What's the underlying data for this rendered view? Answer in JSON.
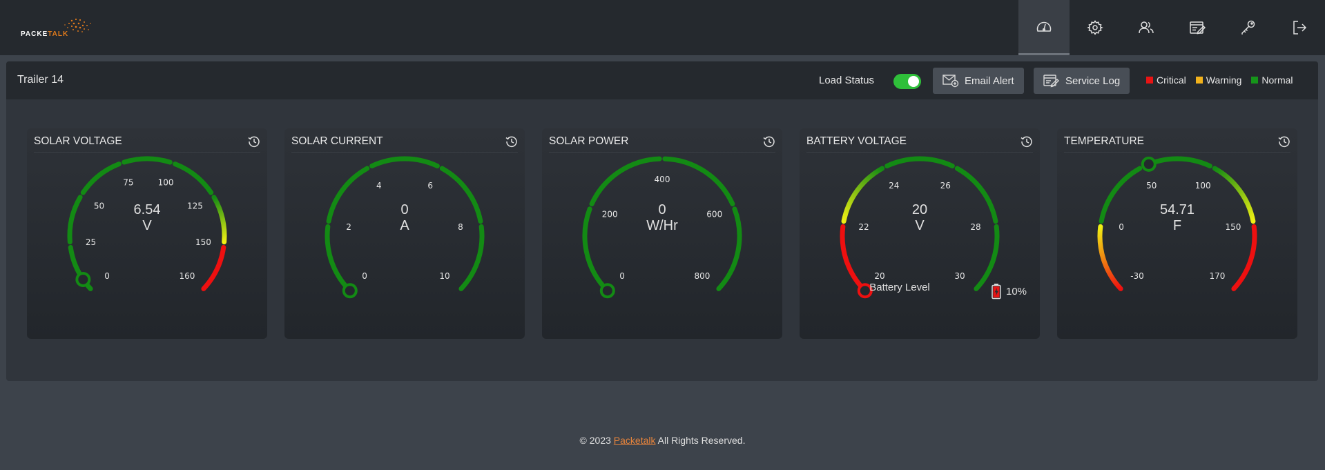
{
  "brand": {
    "logo_part1": "PACKE",
    "logo_part2": "TALK",
    "logo_color": "#e07a1c"
  },
  "nav": [
    {
      "name": "nav-dashboard",
      "icon": "dashboard-gauge-icon",
      "active": true
    },
    {
      "name": "nav-settings",
      "icon": "gear-icon",
      "active": false
    },
    {
      "name": "nav-users",
      "icon": "users-icon",
      "active": false
    },
    {
      "name": "nav-service-log",
      "icon": "notepad-pen-icon",
      "active": false
    },
    {
      "name": "nav-keys",
      "icon": "key-icon",
      "active": false
    },
    {
      "name": "nav-logout",
      "icon": "logout-icon",
      "active": false
    }
  ],
  "header": {
    "trailer_name": "Trailer 14",
    "load_status_label": "Load Status",
    "load_status_on": true,
    "email_alert_label": "Email Alert",
    "service_log_label": "Service Log",
    "legend": [
      {
        "label": "Critical",
        "color": "#e81414"
      },
      {
        "label": "Warning",
        "color": "#f2b21c"
      },
      {
        "label": "Normal",
        "color": "#16951a"
      }
    ]
  },
  "colors": {
    "normal": "#138a14",
    "warning_yellow": "#f0f014",
    "critical": "#ee1010"
  },
  "gauges": [
    {
      "id": "solar-voltage",
      "title": "SOLAR VOLTAGE",
      "value": "6.54",
      "unit": "V",
      "ticks": [
        "0",
        "25",
        "50",
        "75",
        "100",
        "125",
        "150",
        "160"
      ],
      "zones": [
        [
          "normal",
          "normal"
        ],
        [
          "normal",
          "normal"
        ],
        [
          "normal",
          "normal"
        ],
        [
          "normal",
          "normal"
        ],
        [
          "normal",
          "normal"
        ],
        [
          "normal",
          "warning_yellow"
        ],
        [
          "critical",
          "critical"
        ]
      ],
      "needle_fraction": 0.04
    },
    {
      "id": "solar-current",
      "title": "SOLAR CURRENT",
      "value": "0",
      "unit": "A",
      "ticks": [
        "0",
        "2",
        "4",
        "6",
        "8",
        "10"
      ],
      "zones": [
        [
          "normal",
          "normal"
        ],
        [
          "normal",
          "normal"
        ],
        [
          "normal",
          "normal"
        ],
        [
          "normal",
          "normal"
        ],
        [
          "normal",
          "normal"
        ]
      ],
      "needle_fraction": 0
    },
    {
      "id": "solar-power",
      "title": "SOLAR POWER",
      "value": "0",
      "unit": "W/Hr",
      "ticks": [
        "0",
        "200",
        "400",
        "600",
        "800"
      ],
      "zones": [
        [
          "normal",
          "normal"
        ],
        [
          "normal",
          "normal"
        ],
        [
          "normal",
          "normal"
        ],
        [
          "normal",
          "normal"
        ]
      ],
      "needle_fraction": 0
    },
    {
      "id": "battery-voltage",
      "title": "BATTERY VOLTAGE",
      "value": "20",
      "unit": "V",
      "ticks": [
        "20",
        "22",
        "24",
        "26",
        "28",
        "30"
      ],
      "zones": [
        [
          "critical",
          "critical"
        ],
        [
          "warning_yellow",
          "normal"
        ],
        [
          "normal",
          "normal"
        ],
        [
          "normal",
          "normal"
        ],
        [
          "normal",
          "normal"
        ]
      ],
      "needle_fraction": 0,
      "battery_level_label": "Battery Level",
      "battery_level": "10%"
    },
    {
      "id": "temperature",
      "title": "TEMPERATURE",
      "value": "54.71",
      "unit": "F",
      "ticks": [
        "-30",
        "0",
        "50",
        "100",
        "150",
        "170"
      ],
      "zones": [
        [
          "critical",
          "warning_yellow"
        ],
        [
          "normal",
          "normal"
        ],
        [
          "normal",
          "normal"
        ],
        [
          "normal",
          "warning_yellow"
        ],
        [
          "critical",
          "critical"
        ]
      ],
      "needle_fraction": 0.42
    }
  ],
  "footer": {
    "prefix": "© 2023",
    "link": "Packetalk",
    "suffix": "All Rights Reserved."
  }
}
